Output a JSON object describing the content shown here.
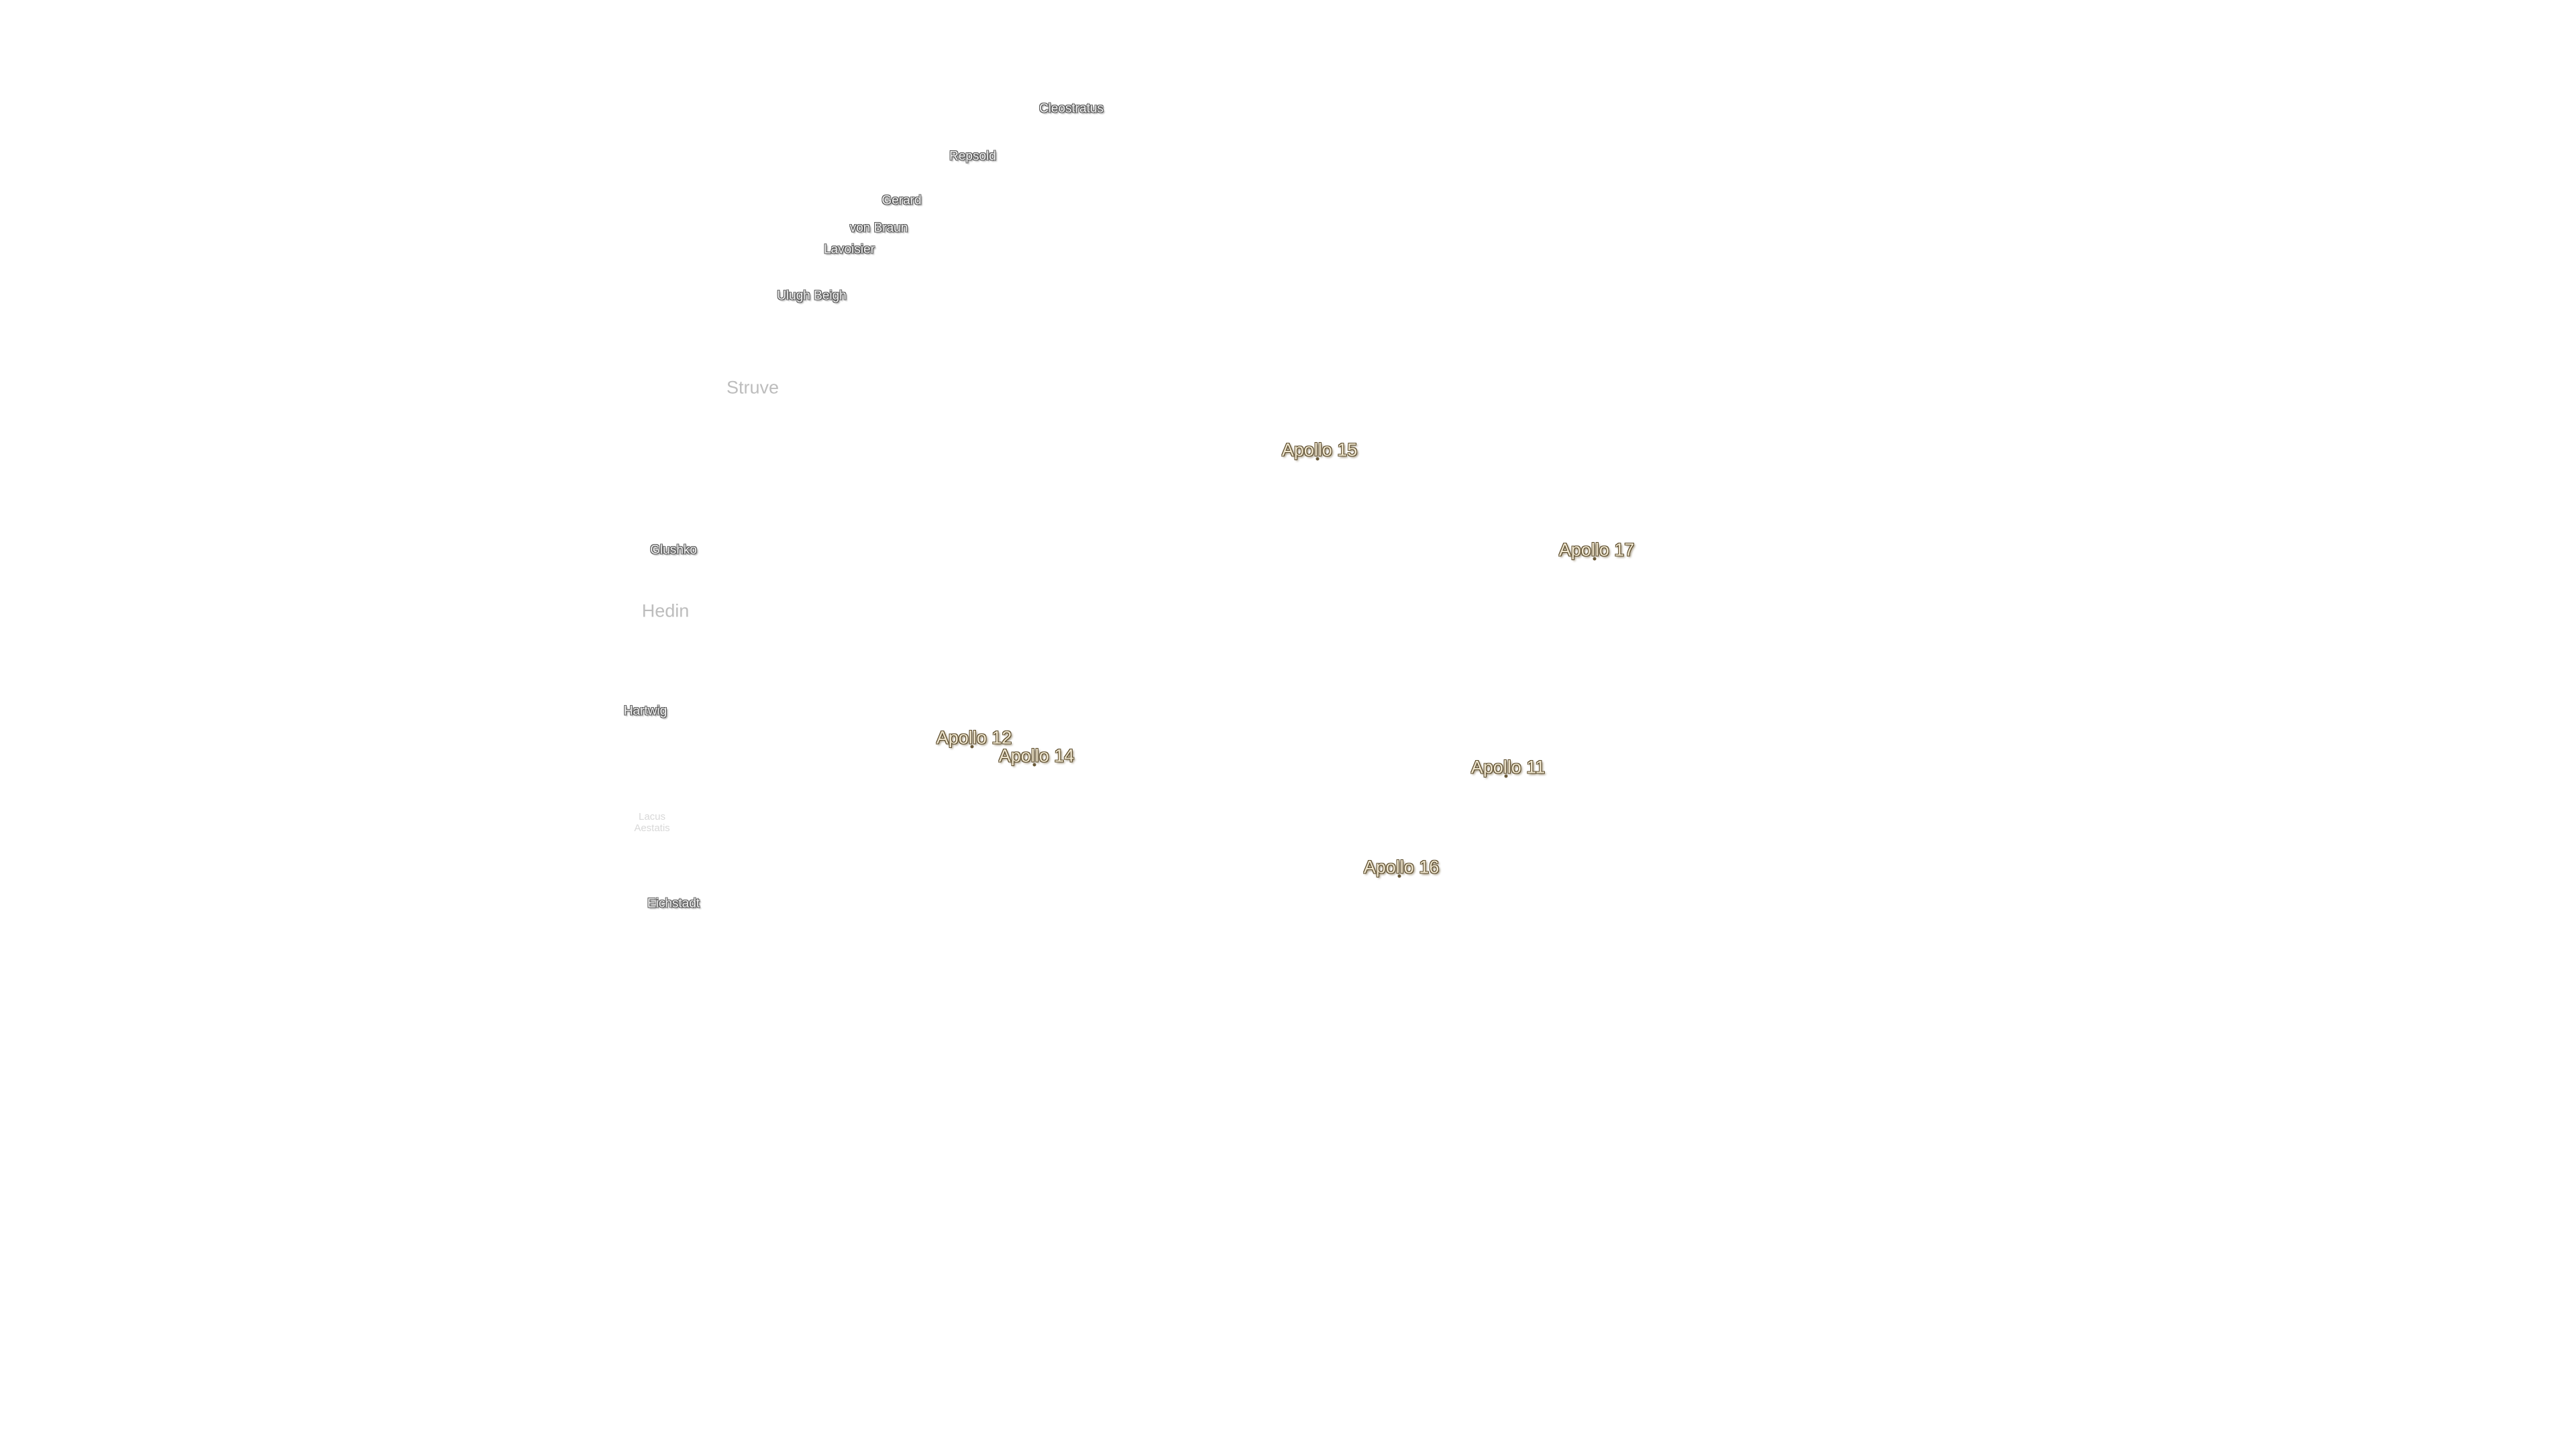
{
  "map": {
    "craters": [
      "Cleostratus",
      "Repsold",
      "Gerard",
      "von Braun",
      "Lavoisier",
      "Ulugh Beigh",
      "Glushko",
      "Hartwig",
      "Eichstadt"
    ],
    "regions": [
      "Struve",
      "Hedin"
    ],
    "lakes": [
      [
        "Lacus",
        "Aestatis"
      ]
    ],
    "landing_sites": [
      "Apollo 15",
      "Apollo 17",
      "Apollo 12",
      "Apollo 14",
      "Apollo 11",
      "Apollo 16"
    ]
  }
}
